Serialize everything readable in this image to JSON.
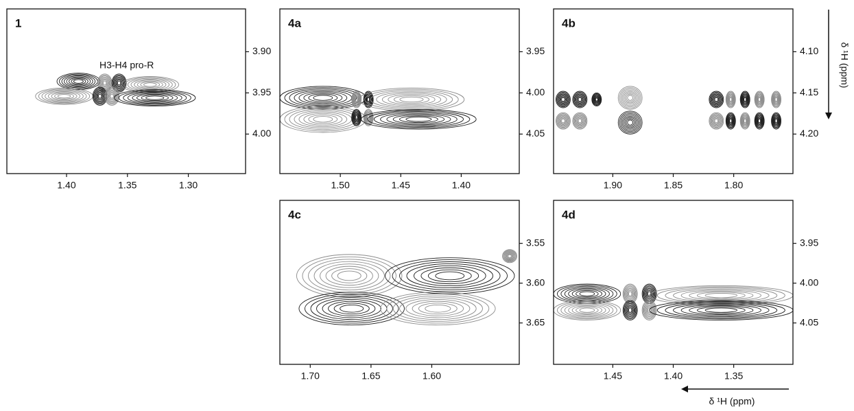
{
  "chart_data": [
    {
      "type": "contour",
      "title": "1",
      "annotation": "H3-H4 pro-R",
      "xlim": [
        1.449,
        1.253
      ],
      "ylim": [
        4.048,
        3.848
      ],
      "xticks": [
        {
          "value": 1.4,
          "label": "1.40"
        },
        {
          "value": 1.35,
          "label": "1.35"
        },
        {
          "value": 1.3,
          "label": "1.30"
        }
      ],
      "yticks": [
        {
          "value": 3.9,
          "label": "3.90"
        },
        {
          "value": 3.95,
          "label": "3.95"
        },
        {
          "value": 4.0,
          "label": "4.00"
        }
      ]
    },
    {
      "type": "contour",
      "title": "4a",
      "xlim": [
        1.55,
        1.352
      ],
      "ylim": [
        4.098,
        3.898
      ],
      "xticks": [
        {
          "value": 1.5,
          "label": "1.50"
        },
        {
          "value": 1.45,
          "label": "1.45"
        },
        {
          "value": 1.4,
          "label": "1.40"
        }
      ],
      "yticks": [
        {
          "value": 3.95,
          "label": "3.95"
        },
        {
          "value": 4.0,
          "label": "4.00"
        },
        {
          "value": 4.05,
          "label": "4.05"
        }
      ]
    },
    {
      "type": "contour",
      "title": "4b",
      "xlim": [
        1.949,
        1.751
      ],
      "ylim": [
        4.248,
        4.048
      ],
      "xticks": [
        {
          "value": 1.9,
          "label": "1.90"
        },
        {
          "value": 1.85,
          "label": "1.85"
        },
        {
          "value": 1.8,
          "label": "1.80"
        }
      ],
      "yticks": [
        {
          "value": 4.1,
          "label": "4.10"
        },
        {
          "value": 4.15,
          "label": "4.15"
        },
        {
          "value": 4.2,
          "label": "4.20"
        }
      ]
    },
    {
      "type": "contour",
      "title": "4c",
      "xlim": [
        1.725,
        1.528
      ],
      "ylim": [
        3.702,
        3.496
      ],
      "xticks": [
        {
          "value": 1.7,
          "label": "1.70"
        },
        {
          "value": 1.65,
          "label": "1.65"
        },
        {
          "value": 1.6,
          "label": "1.60"
        }
      ],
      "yticks": [
        {
          "value": 3.55,
          "label": "3.55"
        },
        {
          "value": 3.6,
          "label": "3.60"
        },
        {
          "value": 3.65,
          "label": "3.65"
        }
      ]
    },
    {
      "type": "contour",
      "title": "4d",
      "xlim": [
        1.499,
        1.301
      ],
      "ylim": [
        4.102,
        3.896
      ],
      "xticks": [
        {
          "value": 1.45,
          "label": "1.45"
        },
        {
          "value": 1.4,
          "label": "1.40"
        },
        {
          "value": 1.35,
          "label": "1.35"
        }
      ],
      "yticks": [
        {
          "value": 3.95,
          "label": "3.95"
        },
        {
          "value": 4.0,
          "label": "4.00"
        },
        {
          "value": 4.05,
          "label": "4.05"
        }
      ]
    }
  ],
  "axis_labels": {
    "x": "δ ¹H (ppm)",
    "y": "δ ¹H (ppm)"
  }
}
